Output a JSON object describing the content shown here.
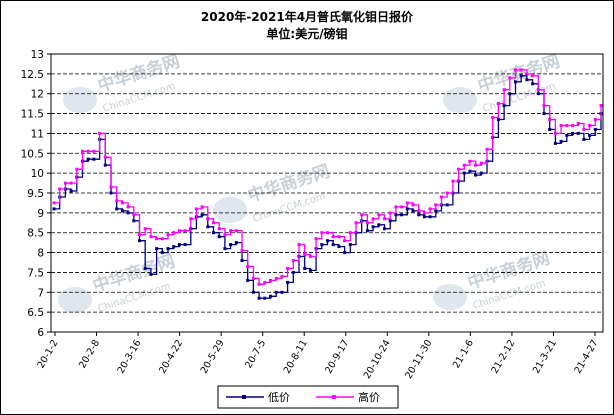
{
  "watermark": {
    "name": "中华商务网",
    "site": "ChinaCCM.com"
  },
  "chart_data": {
    "type": "line",
    "title": "2020年-2021年4月普氏氧化钼日报价",
    "subtitle": "单位:美元/磅钼",
    "xlabel": "",
    "ylabel": "",
    "ylim": [
      6,
      13
    ],
    "y_ticks": [
      "6",
      "6.5",
      "7",
      "7.5",
      "8",
      "8.5",
      "9",
      "9.5",
      "10",
      "10.5",
      "11",
      "11.5",
      "12",
      "12.5",
      "13"
    ],
    "x_ticks": [
      "20-1-2",
      "20-2-8",
      "20-3-16",
      "20-4-22",
      "20-5-29",
      "20-7-5",
      "20-8-11",
      "20-9-17",
      "20-10-24",
      "20-11-30",
      "21-1-6",
      "21-2-12",
      "21-3-21",
      "21-4-27"
    ],
    "grid": "horizontal dashed",
    "legend_position": "bottom",
    "colors": {
      "low": "#000080",
      "high": "#ff00ff"
    },
    "series": [
      {
        "name": "低价",
        "values": [
          9.1,
          9.4,
          9.6,
          9.55,
          9.9,
          10.3,
          10.35,
          10.35,
          10.85,
          10.2,
          9.5,
          9.1,
          9.05,
          9.0,
          8.8,
          8.3,
          7.6,
          7.45,
          8.1,
          8.0,
          8.1,
          8.15,
          8.2,
          8.2,
          8.6,
          8.9,
          8.95,
          8.65,
          8.5,
          8.4,
          8.1,
          8.2,
          8.25,
          7.8,
          7.3,
          7.0,
          6.85,
          6.85,
          6.9,
          7.0,
          7.0,
          7.25,
          7.5,
          7.9,
          7.6,
          7.55,
          8.1,
          8.2,
          8.3,
          8.2,
          8.15,
          8.0,
          8.2,
          8.5,
          8.8,
          8.55,
          8.65,
          8.7,
          8.6,
          8.8,
          8.95,
          8.95,
          9.1,
          9.05,
          8.95,
          8.9,
          8.9,
          9.05,
          9.2,
          9.2,
          9.5,
          9.8,
          10.0,
          10.05,
          9.95,
          10.0,
          10.3,
          10.9,
          11.35,
          11.7,
          12.0,
          12.3,
          12.45,
          12.35,
          12.25,
          12.0,
          11.5,
          11.1,
          10.75,
          10.8,
          10.95,
          11.0,
          11.0,
          10.85,
          10.95,
          11.1,
          11.5
        ]
      },
      {
        "name": "高价",
        "values": [
          9.25,
          9.6,
          9.75,
          9.75,
          10.1,
          10.55,
          10.55,
          10.55,
          11.0,
          10.4,
          9.65,
          9.3,
          9.25,
          9.15,
          8.95,
          8.45,
          8.6,
          8.4,
          8.35,
          8.35,
          8.45,
          8.5,
          8.55,
          8.55,
          8.85,
          9.1,
          9.15,
          8.85,
          8.75,
          8.6,
          8.45,
          8.55,
          8.55,
          8.05,
          7.65,
          7.35,
          7.2,
          7.25,
          7.3,
          7.35,
          7.4,
          7.6,
          7.8,
          8.2,
          7.95,
          7.9,
          8.35,
          8.5,
          8.5,
          8.4,
          8.4,
          8.3,
          8.5,
          8.75,
          8.95,
          8.75,
          8.85,
          8.95,
          8.85,
          9.0,
          9.15,
          9.15,
          9.25,
          9.2,
          9.05,
          9.0,
          9.1,
          9.2,
          9.4,
          9.5,
          9.8,
          10.1,
          10.2,
          10.3,
          10.2,
          10.25,
          10.6,
          11.4,
          11.75,
          12.1,
          12.4,
          12.6,
          12.6,
          12.5,
          12.45,
          12.1,
          11.7,
          11.35,
          11.0,
          11.2,
          11.2,
          11.2,
          11.25,
          11.1,
          11.2,
          11.35,
          11.7
        ]
      }
    ]
  }
}
